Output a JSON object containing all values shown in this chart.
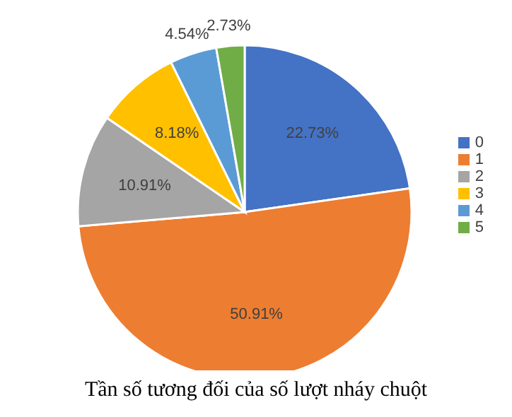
{
  "chart_data": {
    "type": "pie",
    "title": "Tần số tương đối của số lượt nháy chuột",
    "categories": [
      "0",
      "1",
      "2",
      "3",
      "4",
      "5"
    ],
    "values": [
      22.73,
      50.91,
      10.91,
      8.18,
      4.54,
      2.73
    ],
    "colors": [
      "#4472c4",
      "#ed7d31",
      "#a5a5a5",
      "#ffc000",
      "#5b9bd5",
      "#70ad47"
    ],
    "value_labels": [
      "22.73%",
      "50.91%",
      "10.91%",
      "8.18%",
      "4.54%",
      "2.73%"
    ],
    "legend": "right"
  }
}
